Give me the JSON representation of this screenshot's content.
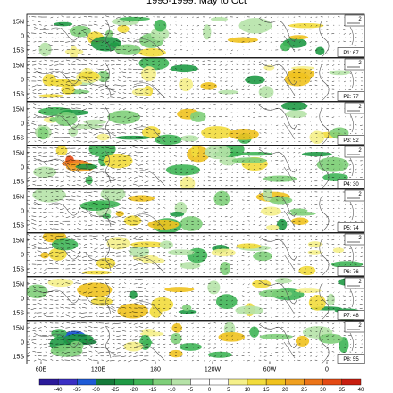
{
  "title": "1995-1999: May to Oct",
  "chart_data": {
    "type": "heatmap",
    "title": "1995-1999: May to Oct",
    "panel_labels": [
      "P1: 67",
      "P2: 77",
      "P3: 52",
      "P4: 30",
      "P5: 74",
      "P6: 76",
      "P7: 48",
      "P8: 55"
    ],
    "reference_vector_label": "2",
    "y_ticks": [
      "15N",
      "0",
      "15S"
    ],
    "x_ticks": [
      "60E",
      "120E",
      "180",
      "120W",
      "60W",
      "0"
    ],
    "colorbar": {
      "levels": [
        -40,
        -35,
        -30,
        -25,
        -20,
        -15,
        -10,
        -5,
        0,
        5,
        10,
        15,
        20,
        25,
        30,
        35,
        40
      ],
      "colors": [
        "#2b1a9a",
        "#3a2fc4",
        "#1e5bd6",
        "#147a3a",
        "#1f9a45",
        "#3fb556",
        "#7fcf7a",
        "#b6e3a8",
        "#ffffff",
        "#ffffff",
        "#f5f08a",
        "#f2dc3c",
        "#f0c21e",
        "#f0a020",
        "#ec7418",
        "#e44a14",
        "#c81e10"
      ]
    }
  }
}
